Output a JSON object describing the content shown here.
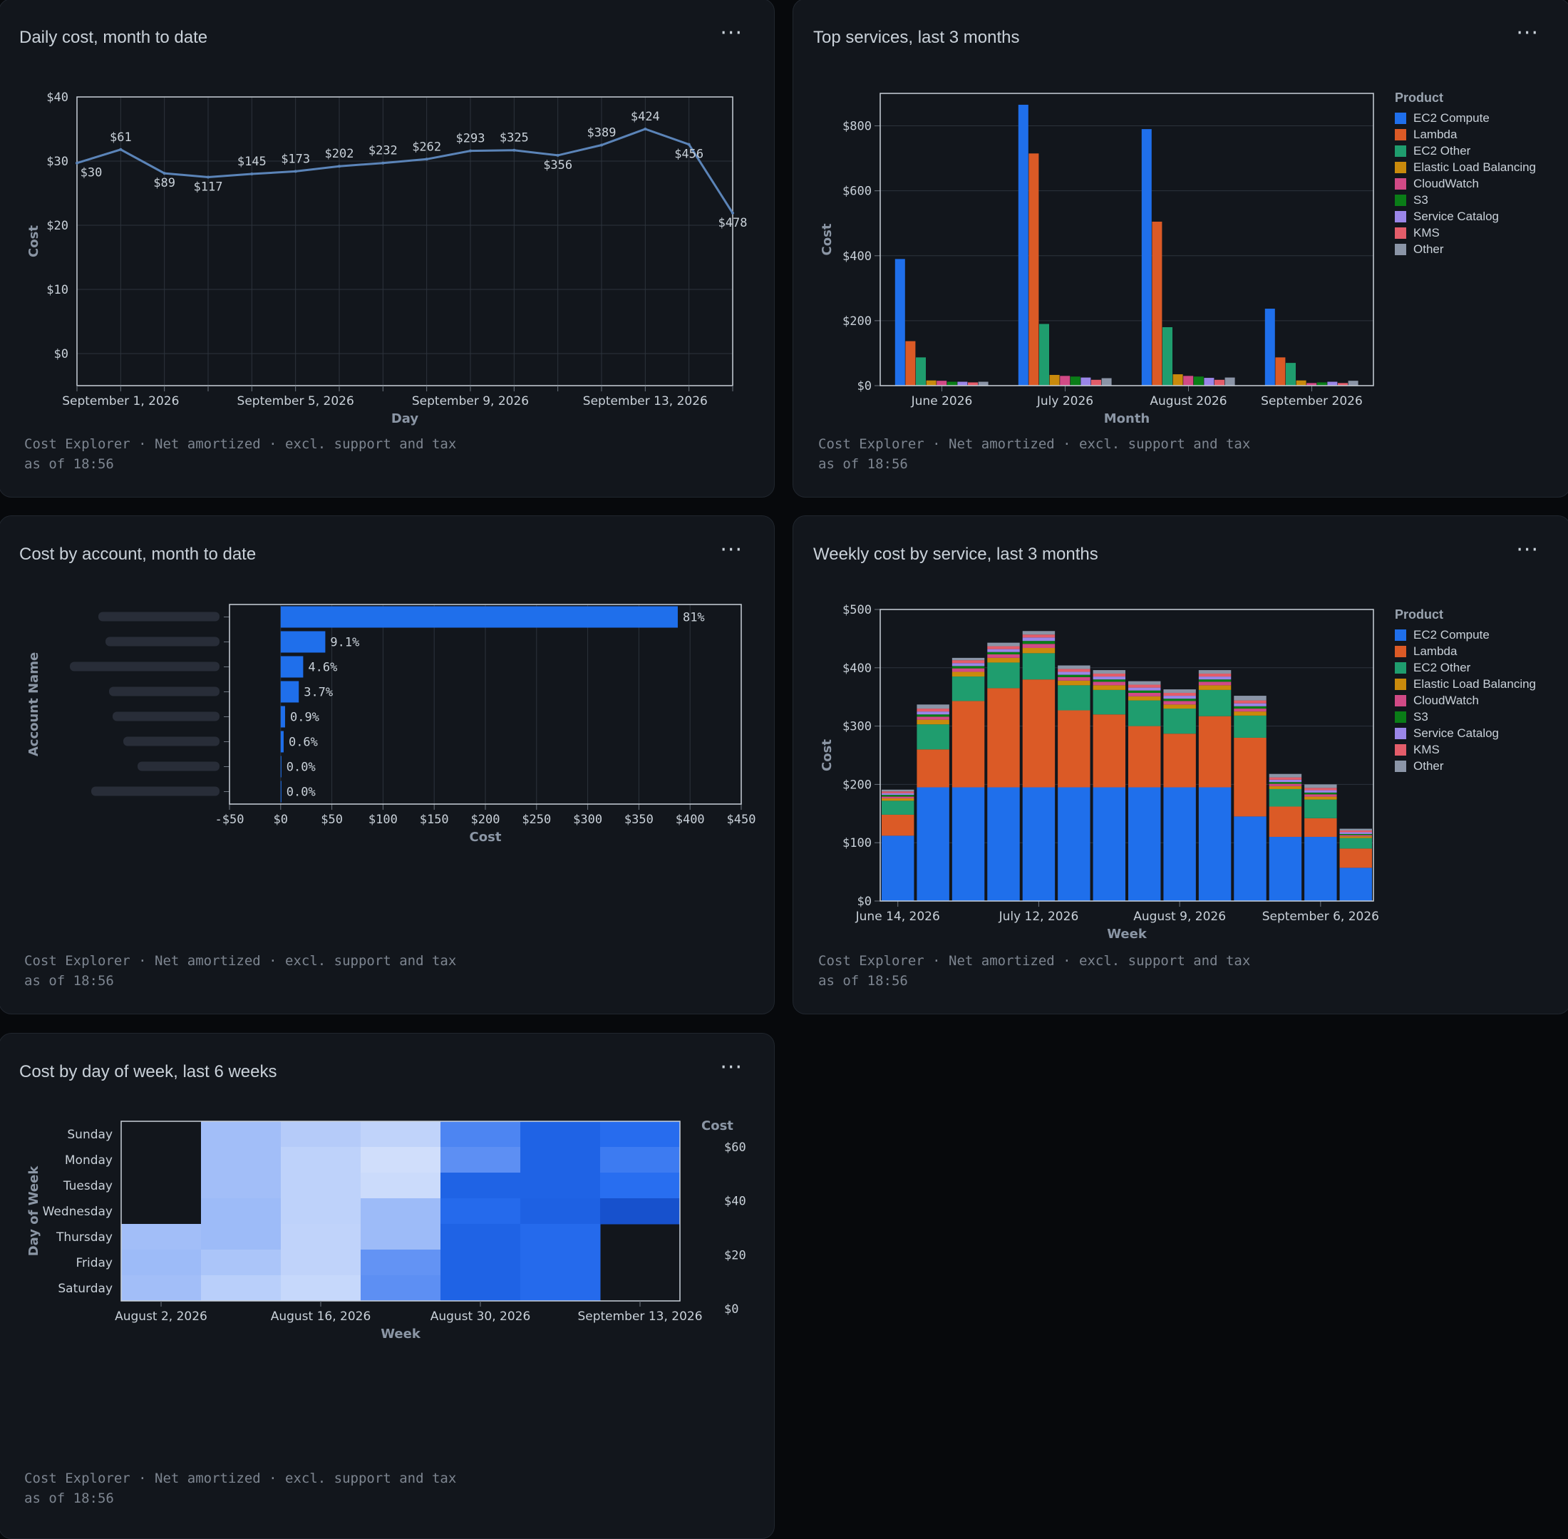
{
  "footer": {
    "line1": "Cost Explorer · Net amortized · excl. support and tax",
    "line2": "as of 18:56"
  },
  "menu_glyph": "···",
  "colors": {
    "EC2 Compute": "#1f6feb",
    "Lambda": "#db5a26",
    "EC2 Other": "#1f9d6e",
    "Elastic Load Balancing": "#c98a0c",
    "CloudWatch": "#d14a86",
    "S3": "#0a7d17",
    "Service Catalog": "#9a86e8",
    "KMS": "#e35d6a",
    "Other": "#8b95a7"
  },
  "panels": {
    "daily": {
      "title": "Daily cost, month to date"
    },
    "top": {
      "title": "Top services, last 3 months"
    },
    "account": {
      "title": "Cost by account, month to date"
    },
    "weekly": {
      "title": "Weekly cost by service, last 3 months"
    },
    "dow": {
      "title": "Cost by day of week, last 6 weeks"
    }
  },
  "chart_data": [
    {
      "id": "daily",
      "type": "line",
      "xlabel": "Day",
      "ylabel": "Cost",
      "ylim": [
        -5,
        40
      ],
      "yticks": [
        "$0",
        "$10",
        "$20",
        "$30",
        "$40"
      ],
      "ytick_values": [
        0,
        10,
        20,
        30,
        40
      ],
      "xticks": [
        "September 1, 2026",
        "September 5, 2026",
        "September 9, 2026",
        "September 13, 2026"
      ],
      "xtick_days": [
        1,
        5,
        9,
        13
      ],
      "x": [
        0,
        1,
        2,
        3,
        4,
        5,
        6,
        7,
        8,
        9,
        10,
        11,
        12,
        13,
        14,
        15
      ],
      "values": [
        29.7,
        31.8,
        28.1,
        27.5,
        28.0,
        28.4,
        29.2,
        29.7,
        30.3,
        31.6,
        31.7,
        30.9,
        32.5,
        35.0,
        32.6,
        21.9
      ],
      "labels": [
        "$30",
        "$61",
        "$89",
        "$117",
        "$145",
        "$173",
        "$202",
        "$232",
        "$262",
        "$293",
        "$325",
        "$356",
        "$389",
        "$424",
        "$456",
        "$478"
      ],
      "grid": true
    },
    {
      "id": "top",
      "type": "bar",
      "xlabel": "Month",
      "ylabel": "Cost",
      "ylim": [
        0,
        900
      ],
      "yticks": [
        "$0",
        "$200",
        "$400",
        "$600",
        "$800"
      ],
      "ytick_values": [
        0,
        200,
        400,
        600,
        800
      ],
      "categories": [
        "June 2026",
        "July 2026",
        "August 2026",
        "September 2026"
      ],
      "legend_title": "Product",
      "legend_position": "right",
      "series": [
        {
          "name": "EC2 Compute",
          "values": [
            390,
            865,
            790,
            237
          ]
        },
        {
          "name": "Lambda",
          "values": [
            137,
            715,
            505,
            87
          ]
        },
        {
          "name": "EC2 Other",
          "values": [
            87,
            190,
            180,
            70
          ]
        },
        {
          "name": "Elastic Load Balancing",
          "values": [
            16,
            33,
            35,
            16
          ]
        },
        {
          "name": "CloudWatch",
          "values": [
            15,
            30,
            30,
            8
          ]
        },
        {
          "name": "S3",
          "values": [
            12,
            28,
            28,
            10
          ]
        },
        {
          "name": "Service Catalog",
          "values": [
            12,
            25,
            24,
            12
          ]
        },
        {
          "name": "KMS",
          "values": [
            10,
            18,
            18,
            8
          ]
        },
        {
          "name": "Other",
          "values": [
            12,
            23,
            25,
            15
          ]
        }
      ]
    },
    {
      "id": "account",
      "type": "bar",
      "orientation": "horizontal",
      "xlabel": "Cost",
      "ylabel": "Account Name",
      "xlim": [
        -50,
        450
      ],
      "xticks": [
        "-$50",
        "$0",
        "$50",
        "$100",
        "$150",
        "$200",
        "$250",
        "$300",
        "$350",
        "$400",
        "$450"
      ],
      "xtick_values": [
        -50,
        0,
        50,
        100,
        150,
        200,
        250,
        300,
        350,
        400,
        450
      ],
      "values": [
        388,
        43.6,
        22,
        17.7,
        4.3,
        2.9,
        0.1,
        0.1
      ],
      "data_labels": [
        "81%",
        "9.1%",
        "4.6%",
        "3.7%",
        "0.9%",
        "0.6%",
        "0.0%",
        "0.0%"
      ]
    },
    {
      "id": "weekly",
      "type": "bar",
      "stacked": true,
      "xlabel": "Week",
      "ylabel": "Cost",
      "ylim": [
        0,
        500
      ],
      "yticks": [
        "$0",
        "$100",
        "$200",
        "$300",
        "$400",
        "$500"
      ],
      "ytick_values": [
        0,
        100,
        200,
        300,
        400,
        500
      ],
      "xticks": [
        "June 14, 2026",
        "July 12, 2026",
        "August 9, 2026",
        "September 6, 2026"
      ],
      "xtick_index": [
        0,
        4,
        8,
        12
      ],
      "legend_title": "Product",
      "legend_position": "right",
      "series": [
        {
          "name": "EC2 Compute",
          "values": [
            112,
            195,
            195,
            195,
            195,
            195,
            195,
            195,
            195,
            195,
            145,
            110,
            110,
            57
          ]
        },
        {
          "name": "Lambda",
          "values": [
            36,
            65,
            148,
            170,
            185,
            132,
            125,
            105,
            92,
            122,
            135,
            52,
            32,
            33
          ]
        },
        {
          "name": "EC2 Other",
          "values": [
            24,
            43,
            42,
            44,
            45,
            43,
            42,
            44,
            43,
            45,
            38,
            30,
            32,
            18
          ]
        },
        {
          "name": "Elastic Load Balancing",
          "values": [
            4,
            8,
            8,
            8,
            9,
            8,
            8,
            7,
            7,
            8,
            7,
            5,
            5,
            3
          ]
        },
        {
          "name": "CloudWatch",
          "values": [
            3,
            5,
            6,
            6,
            7,
            6,
            6,
            6,
            6,
            6,
            5,
            4,
            4,
            2
          ]
        },
        {
          "name": "S3",
          "values": [
            3,
            4,
            4,
            4,
            5,
            4,
            4,
            4,
            4,
            4,
            4,
            3,
            3,
            2
          ]
        },
        {
          "name": "Service Catalog",
          "values": [
            3,
            5,
            5,
            5,
            6,
            5,
            5,
            5,
            5,
            5,
            5,
            4,
            4,
            3
          ]
        },
        {
          "name": "KMS",
          "values": [
            3,
            5,
            5,
            5,
            5,
            5,
            5,
            5,
            5,
            5,
            5,
            4,
            4,
            3
          ]
        },
        {
          "name": "Other",
          "values": [
            3,
            7,
            4,
            6,
            6,
            6,
            6,
            6,
            6,
            6,
            8,
            6,
            6,
            3
          ]
        }
      ]
    },
    {
      "id": "dow",
      "type": "heatmap",
      "xlabel": "Week",
      "ylabel": "Day of Week",
      "rows": [
        "Sunday",
        "Monday",
        "Tuesday",
        "Wednesday",
        "Thursday",
        "Friday",
        "Saturday"
      ],
      "xticks": [
        "August 2, 2026",
        "August 16, 2026",
        "August 30, 2026",
        "September 13, 2026"
      ],
      "colorbar_title": "Cost",
      "colorbar_ticks": [
        "$60",
        "$40",
        "$20",
        "$0"
      ],
      "colorbar_tick_values": [
        60,
        40,
        20,
        0
      ],
      "values": [
        [
          null,
          26,
          22,
          19,
          43,
          56,
          51
        ],
        [
          null,
          26,
          20,
          9,
          40,
          56,
          46
        ],
        [
          null,
          26,
          20,
          12,
          56,
          56,
          50
        ],
        [
          null,
          27,
          20,
          27,
          52,
          57,
          62
        ],
        [
          26,
          27,
          19,
          27,
          56,
          52,
          null
        ],
        [
          27,
          24,
          19,
          39,
          56,
          52,
          null
        ],
        [
          26,
          21,
          15,
          40,
          56,
          52,
          null
        ]
      ]
    }
  ]
}
